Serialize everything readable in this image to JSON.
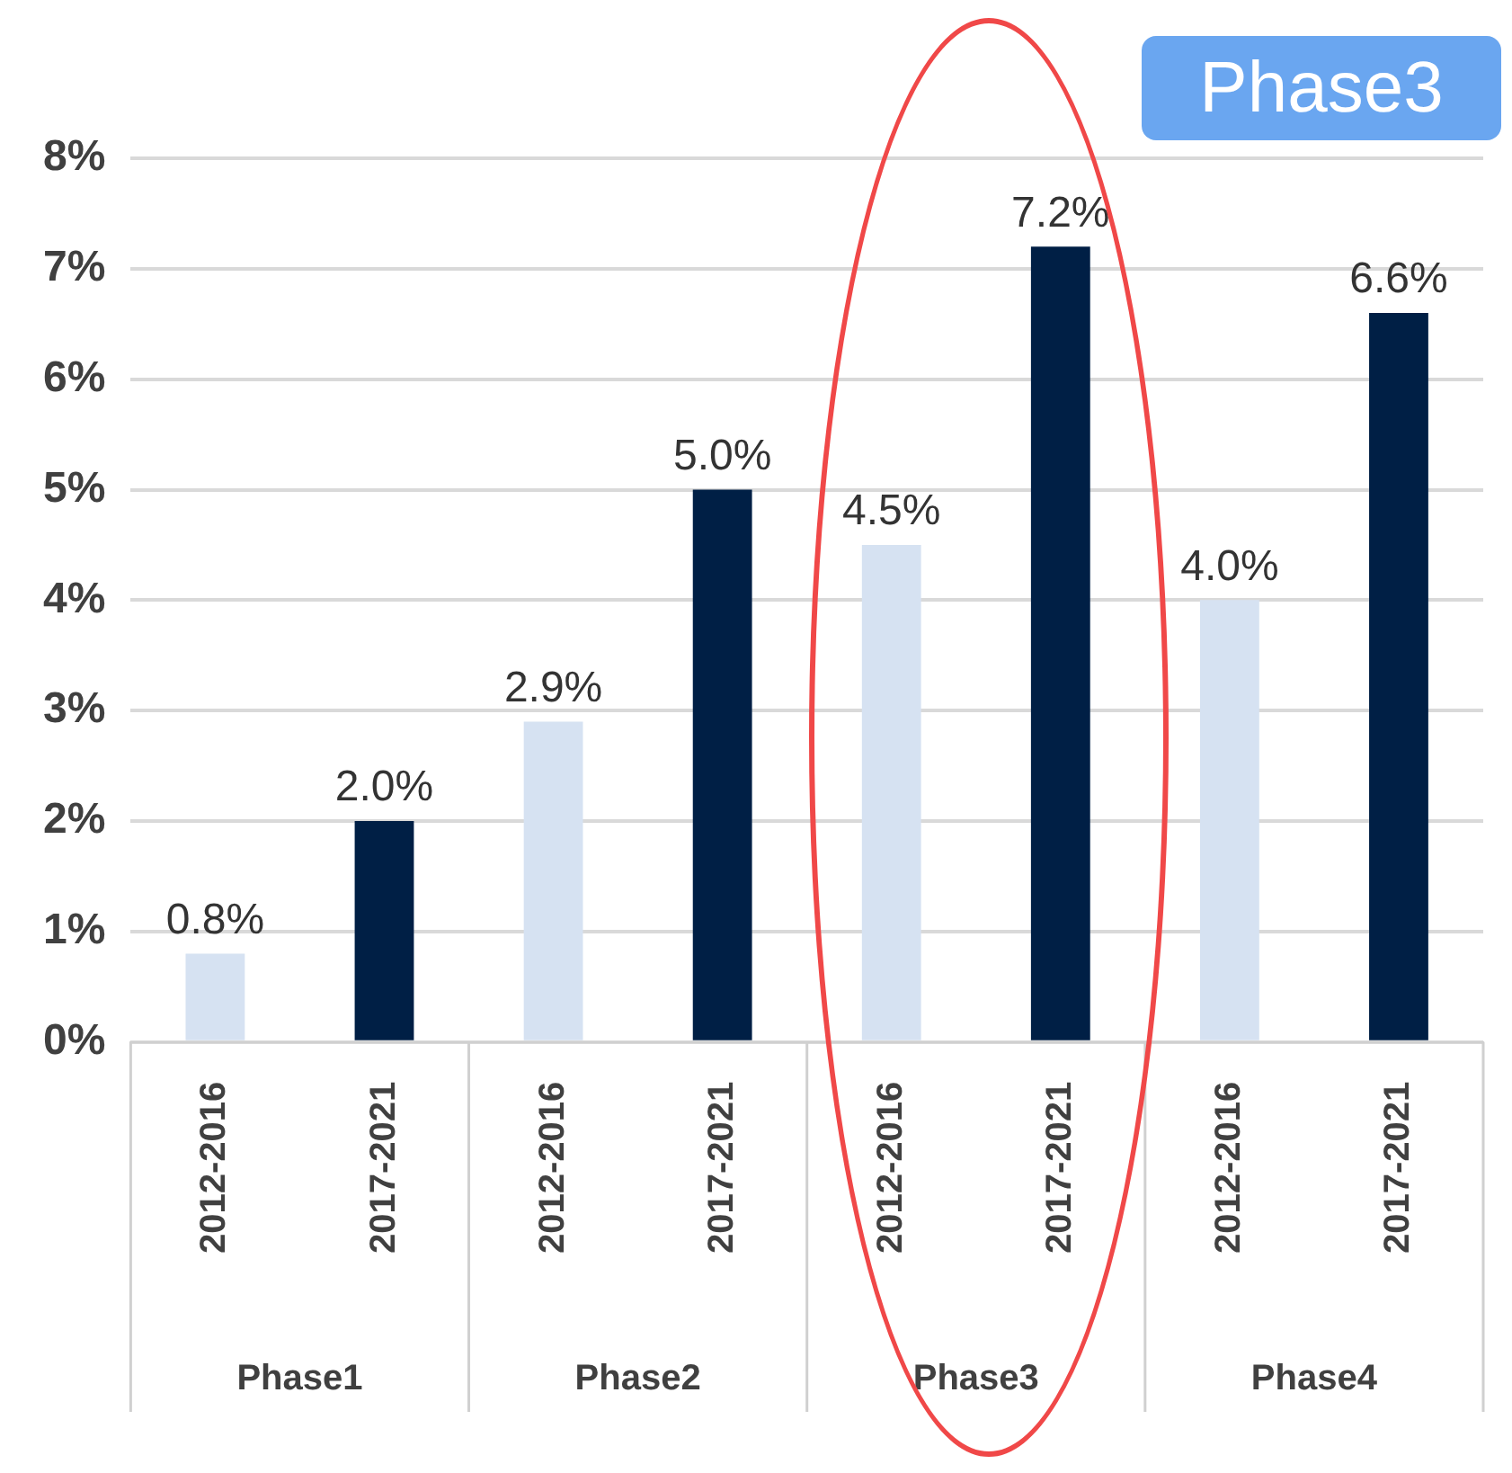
{
  "chart_data": {
    "type": "bar",
    "categories": [
      "2012-2016",
      "2017-2021",
      "2012-2016",
      "2017-2021",
      "2012-2016",
      "2017-2021",
      "2012-2016",
      "2017-2021"
    ],
    "values": [
      0.8,
      2.0,
      2.9,
      5.0,
      4.5,
      7.2,
      4.0,
      6.6
    ],
    "colors": [
      "#d6e2f2",
      "#001f45",
      "#d6e2f2",
      "#001f45",
      "#d6e2f2",
      "#001f45",
      "#d6e2f2",
      "#001f45"
    ],
    "value_labels": [
      "0.8%",
      "2.0%",
      "2.9%",
      "5.0%",
      "4.5%",
      "7.2%",
      "4.0%",
      "6.6%"
    ],
    "ylim": [
      0,
      8
    ],
    "yticks": [
      {
        "value": 0,
        "label": "0%"
      },
      {
        "value": 1,
        "label": "1%"
      },
      {
        "value": 2,
        "label": "2%"
      },
      {
        "value": 3,
        "label": "3%"
      },
      {
        "value": 4,
        "label": "4%"
      },
      {
        "value": 5,
        "label": "5%"
      },
      {
        "value": 6,
        "label": "6%"
      },
      {
        "value": 7,
        "label": "7%"
      },
      {
        "value": 8,
        "label": "8%"
      }
    ],
    "annotations": [
      "Phase1",
      "Phase2",
      "Phase3",
      "Phase4",
      "Phase3"
    ],
    "grid": "y",
    "legend": false
  }
}
